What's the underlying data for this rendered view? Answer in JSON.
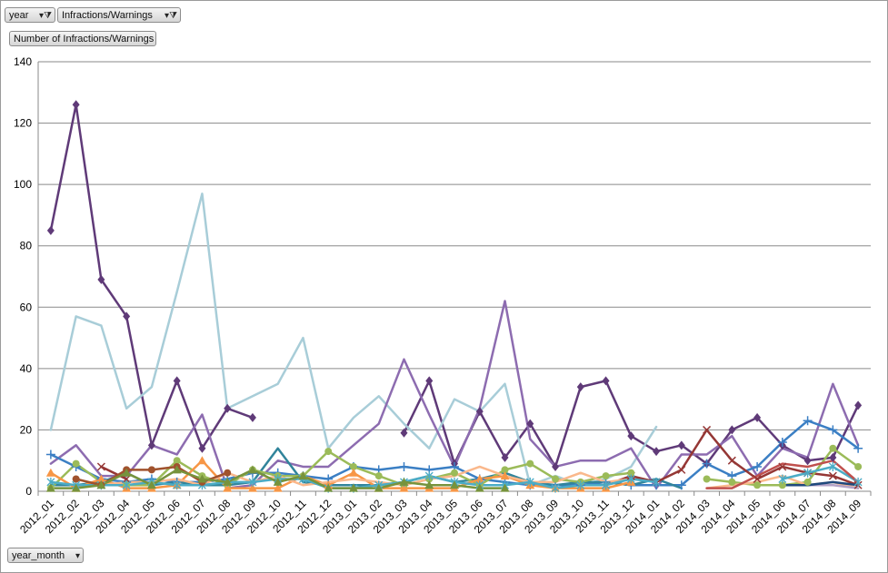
{
  "filters": {
    "year_label": "year",
    "infractions_label": "Infractions/Warnings",
    "values_label": "Number of Infractions/Warnings",
    "axis_field_label": "year_month"
  },
  "icons": {
    "filter": "funnel-filter-icon",
    "dropdown": "dropdown-arrow-icon"
  },
  "chart_data": {
    "type": "line",
    "title": "",
    "xlabel": "",
    "ylabel": "",
    "ylim": [
      0,
      140
    ],
    "yticks": [
      0,
      20,
      40,
      60,
      80,
      100,
      120,
      140
    ],
    "grid": true,
    "legend": "none",
    "categories": [
      "2012_01",
      "2012_02",
      "2012_03",
      "2012_04",
      "2012_05",
      "2012_06",
      "2012_07",
      "2012_08",
      "2012_09",
      "2012_10",
      "2012_11",
      "2012_12",
      "2013_01",
      "2013_02",
      "2013_03",
      "2013_04",
      "2013_05",
      "2013_06",
      "2013_07",
      "2013_08",
      "2013_09",
      "2013_10",
      "2013_11",
      "2013_12",
      "2014_01",
      "2014_02",
      "2014_03",
      "2014_04",
      "2014_05",
      "2014_06",
      "2014_07",
      "2014_08",
      "2014_09"
    ],
    "series": [
      {
        "color": "#5f3a78",
        "marker": "diamond",
        "values": [
          85,
          126,
          69,
          57,
          15,
          36,
          14,
          27,
          24,
          null,
          null,
          null,
          null,
          null,
          19,
          36,
          9,
          26,
          11,
          22,
          8,
          34,
          36,
          18,
          13,
          15,
          9,
          20,
          24,
          15,
          10,
          11,
          28
        ]
      },
      {
        "color": "#a8cdd8",
        "marker": "none",
        "values": [
          20,
          57,
          54,
          27,
          34,
          65,
          97,
          27,
          31,
          35,
          50,
          14,
          24,
          31,
          22,
          14,
          30,
          26,
          35,
          2,
          5,
          2,
          4,
          8,
          21,
          null,
          null,
          null,
          null,
          null,
          null,
          null,
          null
        ]
      },
      {
        "color": "#8d6cb0",
        "marker": "none",
        "values": [
          9,
          15,
          5,
          5,
          15,
          12,
          25,
          1,
          2,
          10,
          8,
          8,
          15,
          22,
          43,
          25,
          8,
          27,
          62,
          17,
          8,
          10,
          10,
          14,
          1,
          12,
          12,
          18,
          5,
          14,
          11,
          35,
          15
        ]
      },
      {
        "color": "#3b7fc4",
        "marker": "plus",
        "values": [
          12,
          8,
          4,
          3,
          4,
          3,
          3,
          4,
          6,
          6,
          5,
          4,
          8,
          7,
          8,
          7,
          8,
          4,
          3,
          2,
          2,
          2,
          3,
          2,
          2,
          2,
          9,
          5,
          8,
          16,
          23,
          20,
          14
        ]
      },
      {
        "color": "#31849b",
        "marker": "none",
        "values": [
          2,
          2,
          3,
          6,
          2,
          3,
          2,
          2,
          3,
          14,
          3,
          2,
          2,
          2,
          3,
          5,
          3,
          4,
          6,
          3,
          2,
          3,
          3,
          2,
          4,
          1,
          null,
          null,
          null,
          null,
          null,
          null,
          null
        ]
      },
      {
        "color": "#953735",
        "marker": "x",
        "values": [
          null,
          null,
          8,
          4,
          null,
          null,
          null,
          null,
          null,
          null,
          null,
          null,
          null,
          null,
          null,
          null,
          null,
          null,
          null,
          null,
          null,
          null,
          2,
          5,
          3,
          7,
          20,
          10,
          4,
          8,
          6,
          5,
          2
        ]
      },
      {
        "color": "#9bbb59",
        "marker": "circle",
        "values": [
          1,
          9,
          3,
          2,
          2,
          10,
          5,
          2,
          7,
          5,
          5,
          13,
          8,
          5,
          2,
          4,
          6,
          2,
          7,
          9,
          4,
          3,
          5,
          6,
          null,
          null,
          4,
          3,
          2,
          2,
          3,
          14,
          8
        ]
      },
      {
        "color": "#f79646",
        "marker": "triangle",
        "values": [
          6,
          1,
          4,
          1,
          1,
          2,
          10,
          1,
          1,
          1,
          5,
          2,
          6,
          1,
          1,
          1,
          1,
          4,
          5,
          2,
          1,
          1,
          1,
          3,
          null,
          null,
          null,
          null,
          null,
          null,
          null,
          null,
          null
        ]
      },
      {
        "color": "#fab88c",
        "marker": "none",
        "values": [
          null,
          2,
          2,
          3,
          3,
          4,
          2,
          6,
          3,
          5,
          2,
          3,
          4,
          3,
          2,
          4,
          5,
          8,
          5,
          3,
          3,
          6,
          3,
          4,
          null,
          null,
          1,
          2,
          3,
          5,
          2,
          3,
          1
        ]
      },
      {
        "color": "#4bacc6",
        "marker": "star",
        "values": [
          3,
          2,
          2,
          2,
          3,
          2,
          2,
          3,
          3,
          4,
          4,
          1,
          1,
          2,
          3,
          5,
          3,
          2,
          2,
          3,
          1,
          2,
          2,
          4,
          3,
          null,
          null,
          null,
          null,
          4,
          6,
          8,
          3
        ]
      },
      {
        "color": "#c0504d",
        "marker": "none",
        "values": [
          null,
          null,
          null,
          null,
          null,
          null,
          null,
          null,
          null,
          null,
          null,
          null,
          null,
          null,
          null,
          null,
          null,
          null,
          null,
          null,
          null,
          null,
          null,
          null,
          null,
          null,
          1,
          1,
          5,
          9,
          8,
          10,
          3
        ]
      },
      {
        "color": "#a0522d",
        "marker": "circle",
        "values": [
          null,
          4,
          2,
          7,
          7,
          8,
          3,
          6,
          null,
          null,
          null,
          null,
          null,
          null,
          null,
          null,
          null,
          null,
          null,
          null,
          null,
          null,
          null,
          null,
          null,
          null,
          null,
          null,
          null,
          null,
          null,
          null,
          null
        ]
      },
      {
        "color": "#77933c",
        "marker": "triangle",
        "values": [
          1,
          1,
          2,
          6,
          2,
          7,
          4,
          3,
          7,
          3,
          5,
          1,
          1,
          1,
          3,
          2,
          2,
          1,
          1,
          null,
          null,
          null,
          null,
          null,
          null,
          null,
          null,
          null,
          null,
          null,
          null,
          null,
          null
        ]
      },
      {
        "color": "#b3a2c7",
        "marker": "none",
        "values": [
          null,
          null,
          null,
          null,
          null,
          null,
          null,
          null,
          null,
          null,
          null,
          null,
          null,
          null,
          null,
          null,
          null,
          null,
          null,
          null,
          null,
          null,
          null,
          null,
          null,
          null,
          null,
          null,
          null,
          null,
          2,
          2,
          1
        ]
      },
      {
        "color": "#1f497d",
        "marker": "none",
        "values": [
          null,
          null,
          null,
          null,
          null,
          null,
          null,
          null,
          null,
          null,
          null,
          null,
          null,
          null,
          null,
          null,
          null,
          null,
          null,
          null,
          null,
          null,
          null,
          null,
          null,
          null,
          null,
          null,
          null,
          2,
          2,
          3,
          2
        ]
      }
    ]
  }
}
